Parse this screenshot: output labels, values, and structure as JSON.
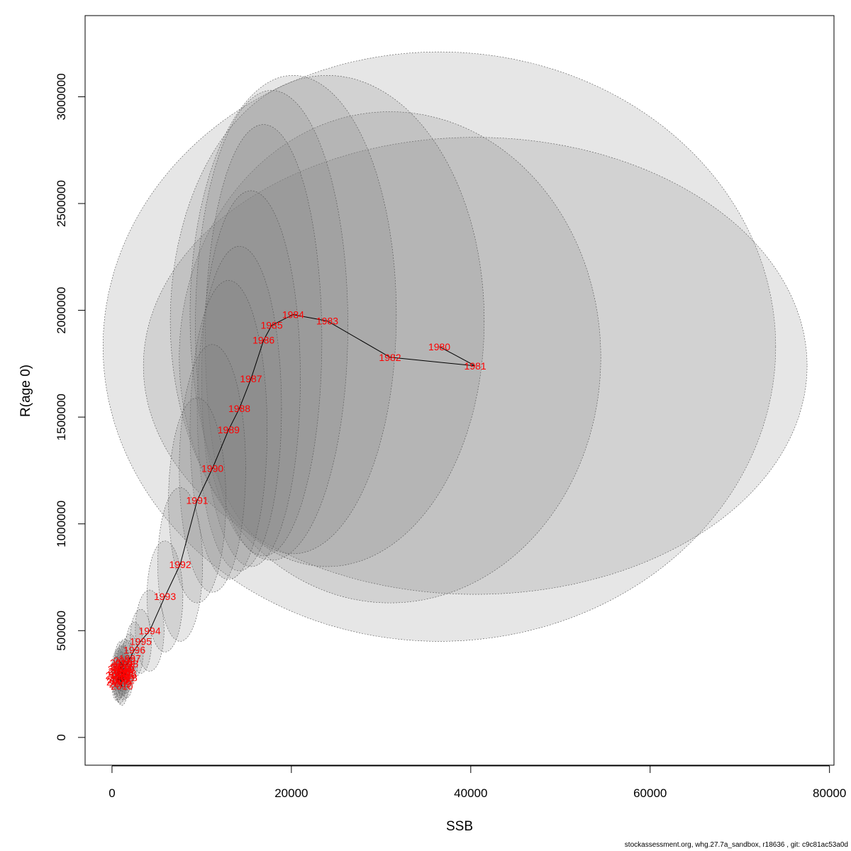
{
  "chart_data": {
    "type": "scatter",
    "title": "",
    "xlabel": "SSB",
    "ylabel": "R(age 0)",
    "xlim": [
      -3000,
      80500
    ],
    "ylim": [
      -130000,
      3380000
    ],
    "x_ticks": [
      0,
      20000,
      40000,
      60000,
      80000
    ],
    "y_ticks": [
      0,
      500000,
      1000000,
      1500000,
      2000000,
      2500000,
      3000000
    ],
    "grid": false,
    "legend": "none",
    "line_color": "#000000",
    "label_color": "#ff0000",
    "ellipse_fill": "#808080",
    "points": [
      {
        "year": "1980",
        "x": 36500,
        "y": 1830000,
        "rx": 37500,
        "ry": 1380000
      },
      {
        "year": "1981",
        "x": 40500,
        "y": 1740000,
        "rx": 37000,
        "ry": 1070000
      },
      {
        "year": "1982",
        "x": 31000,
        "y": 1780000,
        "rx": 23500,
        "ry": 1150000
      },
      {
        "year": "1983",
        "x": 24000,
        "y": 1950000,
        "rx": 17500,
        "ry": 1150000
      },
      {
        "year": "1984",
        "x": 20200,
        "y": 1980000,
        "rx": 11500,
        "ry": 1120000
      },
      {
        "year": "1985",
        "x": 17800,
        "y": 1930000,
        "rx": 8500,
        "ry": 1100000
      },
      {
        "year": "1986",
        "x": 16900,
        "y": 1860000,
        "rx": 6500,
        "ry": 1010000
      },
      {
        "year": "1987",
        "x": 15500,
        "y": 1680000,
        "rx": 5500,
        "ry": 880000
      },
      {
        "year": "1988",
        "x": 14200,
        "y": 1540000,
        "rx": 4700,
        "ry": 760000
      },
      {
        "year": "1989",
        "x": 13000,
        "y": 1440000,
        "rx": 4300,
        "ry": 700000
      },
      {
        "year": "1990",
        "x": 11200,
        "y": 1260000,
        "rx": 3700,
        "ry": 580000
      },
      {
        "year": "1991",
        "x": 9500,
        "y": 1110000,
        "rx": 3200,
        "ry": 480000
      },
      {
        "year": "1992",
        "x": 7600,
        "y": 810000,
        "rx": 2500,
        "ry": 360000
      },
      {
        "year": "1993",
        "x": 5900,
        "y": 660000,
        "rx": 2000,
        "ry": 260000
      },
      {
        "year": "1994",
        "x": 4200,
        "y": 500000,
        "rx": 1600,
        "ry": 190000
      },
      {
        "year": "1995",
        "x": 3200,
        "y": 450000,
        "rx": 1200,
        "ry": 150000
      },
      {
        "year": "1996",
        "x": 2500,
        "y": 410000,
        "rx": 1000,
        "ry": 130000
      },
      {
        "year": "1997",
        "x": 2000,
        "y": 370000,
        "rx": 900,
        "ry": 115000
      },
      {
        "year": "1998",
        "x": 1700,
        "y": 345000,
        "rx": 850,
        "ry": 110000
      },
      {
        "year": "1999",
        "x": 1300,
        "y": 320000,
        "rx": 800,
        "ry": 105000
      },
      {
        "year": "2000",
        "x": 1100,
        "y": 300000,
        "rx": 750,
        "ry": 100000
      },
      {
        "year": "2001",
        "x": 900,
        "y": 280000,
        "rx": 700,
        "ry": 95000
      },
      {
        "year": "2002",
        "x": 1400,
        "y": 360000,
        "rx": 800,
        "ry": 100000
      },
      {
        "year": "2003",
        "x": 1000,
        "y": 330000,
        "rx": 750,
        "ry": 100000
      },
      {
        "year": "2004",
        "x": 700,
        "y": 270000,
        "rx": 650,
        "ry": 95000
      },
      {
        "year": "2005",
        "x": 1200,
        "y": 290000,
        "rx": 700,
        "ry": 95000
      },
      {
        "year": "2006",
        "x": 800,
        "y": 310000,
        "rx": 700,
        "ry": 95000
      },
      {
        "year": "2007",
        "x": 600,
        "y": 260000,
        "rx": 650,
        "ry": 90000
      },
      {
        "year": "2008",
        "x": 1500,
        "y": 300000,
        "rx": 750,
        "ry": 95000
      },
      {
        "year": "2009",
        "x": 900,
        "y": 250000,
        "rx": 650,
        "ry": 90000
      },
      {
        "year": "2010",
        "x": 1100,
        "y": 240000,
        "rx": 650,
        "ry": 90000
      },
      {
        "year": "2011",
        "x": 700,
        "y": 320000,
        "rx": 700,
        "ry": 95000
      },
      {
        "year": "2012",
        "x": 1300,
        "y": 270000,
        "rx": 700,
        "ry": 95000
      },
      {
        "year": "2013",
        "x": 1600,
        "y": 280000,
        "rx": 750,
        "ry": 95000
      },
      {
        "year": "2014",
        "x": 500,
        "y": 290000,
        "rx": 650,
        "ry": 90000
      },
      {
        "year": "2015",
        "x": 1000,
        "y": 350000,
        "rx": 750,
        "ry": 100000
      },
      {
        "year": "2016",
        "x": 1200,
        "y": 330000,
        "rx": 750,
        "ry": 100000
      }
    ]
  },
  "footer": {
    "text": "stockassessment.org, whg.27.7a_sandbox, r18636 , git: c9c81ac53a0d"
  }
}
